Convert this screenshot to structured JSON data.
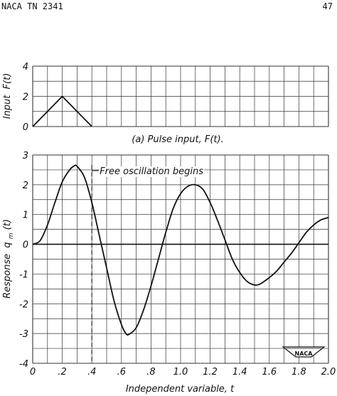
{
  "header": {
    "left": "NACA TN 2341",
    "right": "47"
  },
  "colors": {
    "ink": "#111111",
    "grid": "#333333",
    "background": "#ffffff"
  },
  "chart_data": [
    {
      "type": "line",
      "panel": "top",
      "caption": "(a) Pulse input, F(t).",
      "ylabel_main": "Input",
      "ylabel_sym": "F(t)",
      "xlim": [
        0,
        2.0
      ],
      "ylim": [
        0,
        4
      ],
      "yticks": [
        {
          "value": 0,
          "label": "0"
        },
        {
          "value": 2,
          "label": "2"
        },
        {
          "value": 4,
          "label": "4"
        }
      ],
      "grid": true,
      "series": [
        {
          "points": [
            [
              0,
              0
            ],
            [
              0.2,
              2
            ],
            [
              0.4,
              0
            ]
          ]
        }
      ]
    },
    {
      "type": "line",
      "panel": "bottom",
      "xlabel": "Independent variable, t",
      "ylabel_main": "Response",
      "ylabel_sym": "q",
      "ylabel_sub": "m",
      "ylabel_arg": "(t)",
      "xlim": [
        0,
        2.0
      ],
      "ylim": [
        -4,
        3
      ],
      "xticks": [
        {
          "value": 0,
          "label": "0"
        },
        {
          "value": 0.2,
          "label": ".2"
        },
        {
          "value": 0.4,
          "label": ".4"
        },
        {
          "value": 0.6,
          "label": ".6"
        },
        {
          "value": 0.8,
          "label": ".8"
        },
        {
          "value": 1.0,
          "label": "1.0"
        },
        {
          "value": 1.2,
          "label": "1.2"
        },
        {
          "value": 1.4,
          "label": "1.4"
        },
        {
          "value": 1.6,
          "label": "1.6"
        },
        {
          "value": 1.8,
          "label": "1.8"
        },
        {
          "value": 2.0,
          "label": "2.0"
        }
      ],
      "yticks": [
        {
          "value": 3,
          "label": "3"
        },
        {
          "value": 2,
          "label": "2"
        },
        {
          "value": 1,
          "label": "1"
        },
        {
          "value": 0,
          "label": "0"
        },
        {
          "value": -1,
          "label": "-1"
        },
        {
          "value": -2,
          "label": "-2"
        },
        {
          "value": -3,
          "label": "-3"
        },
        {
          "value": -4,
          "label": "-4"
        }
      ],
      "grid": true,
      "annotation": {
        "text": "Free oscillation begins",
        "x": 0.4
      },
      "logo": "NACA",
      "series": [
        {
          "points": [
            [
              0,
              0
            ],
            [
              0.05,
              0.12
            ],
            [
              0.1,
              0.65
            ],
            [
              0.15,
              1.4
            ],
            [
              0.2,
              2.1
            ],
            [
              0.25,
              2.5
            ],
            [
              0.28,
              2.63
            ],
            [
              0.3,
              2.62
            ],
            [
              0.35,
              2.25
            ],
            [
              0.4,
              1.4
            ],
            [
              0.45,
              0.3
            ],
            [
              0.5,
              -0.8
            ],
            [
              0.55,
              -1.9
            ],
            [
              0.6,
              -2.7
            ],
            [
              0.63,
              -3.0
            ],
            [
              0.65,
              -3.03
            ],
            [
              0.7,
              -2.8
            ],
            [
              0.75,
              -2.2
            ],
            [
              0.8,
              -1.4
            ],
            [
              0.85,
              -0.5
            ],
            [
              0.9,
              0.4
            ],
            [
              0.95,
              1.2
            ],
            [
              1.0,
              1.7
            ],
            [
              1.05,
              1.95
            ],
            [
              1.1,
              2.0
            ],
            [
              1.15,
              1.85
            ],
            [
              1.2,
              1.4
            ],
            [
              1.25,
              0.8
            ],
            [
              1.3,
              0.15
            ],
            [
              1.35,
              -0.5
            ],
            [
              1.4,
              -0.95
            ],
            [
              1.45,
              -1.25
            ],
            [
              1.5,
              -1.37
            ],
            [
              1.53,
              -1.35
            ],
            [
              1.55,
              -1.3
            ],
            [
              1.6,
              -1.12
            ],
            [
              1.65,
              -0.9
            ],
            [
              1.7,
              -0.6
            ],
            [
              1.75,
              -0.3
            ],
            [
              1.8,
              0.05
            ],
            [
              1.85,
              0.4
            ],
            [
              1.9,
              0.65
            ],
            [
              1.95,
              0.82
            ],
            [
              2.0,
              0.9
            ]
          ]
        }
      ]
    }
  ]
}
